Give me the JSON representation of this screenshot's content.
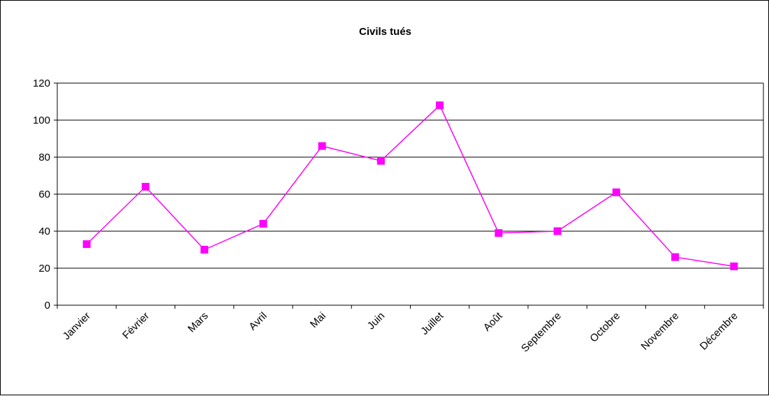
{
  "chart_data": {
    "type": "line",
    "title": "Civils tués",
    "xlabel": "",
    "ylabel": "",
    "categories": [
      "Janvier",
      "Février",
      "Mars",
      "Avril",
      "Mai",
      "Juin",
      "Juillet",
      "Août",
      "Septembre",
      "Octobre",
      "Novembre",
      "Décembre"
    ],
    "series": [
      {
        "values": [
          33,
          64,
          30,
          44,
          86,
          78,
          108,
          39,
          40,
          61,
          26,
          21
        ],
        "color": "#ff00ff",
        "marker": "square"
      }
    ],
    "ylim": [
      0,
      120
    ],
    "yticks": [
      0,
      20,
      40,
      60,
      80,
      100,
      120
    ],
    "grid": "horizontal",
    "legend": "none"
  }
}
